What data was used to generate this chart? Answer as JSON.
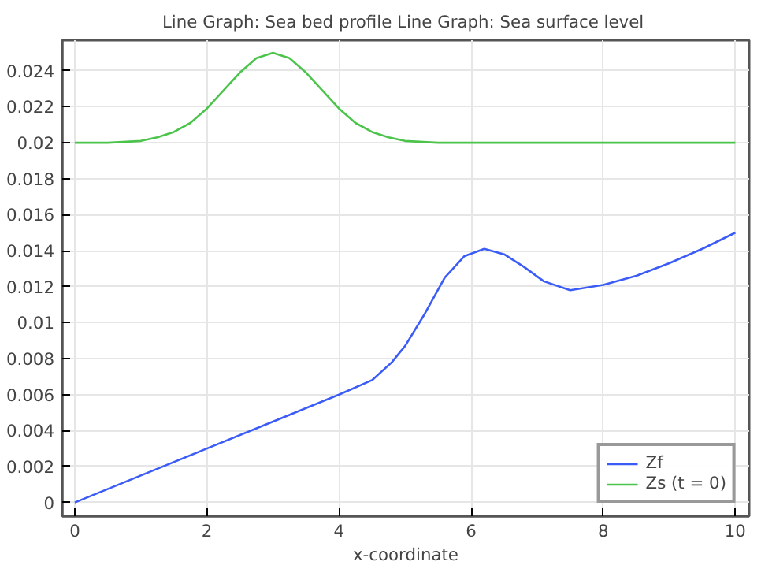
{
  "chart_data": {
    "type": "line",
    "title": "Line Graph: Sea bed profile  Line Graph: Sea surface level",
    "xlabel": "x-coordinate",
    "series": [
      {
        "name": "Zf",
        "color": "#3b5cf6",
        "x": [
          0,
          1,
          2,
          3,
          4,
          4.5,
          4.8,
          5,
          5.3,
          5.6,
          5.9,
          6.2,
          6.5,
          6.8,
          7.1,
          7.5,
          8,
          8.5,
          9,
          9.5,
          10
        ],
        "values": [
          0,
          0.0015,
          0.003,
          0.0045,
          0.006,
          0.0068,
          0.0078,
          0.0087,
          0.0105,
          0.0125,
          0.0137,
          0.0141,
          0.0138,
          0.0131,
          0.0123,
          0.0118,
          0.0121,
          0.0126,
          0.0133,
          0.0141,
          0.015
        ]
      },
      {
        "name": "Zs (t = 0)",
        "color": "#4cc44c",
        "x": [
          0,
          0.5,
          1,
          1.25,
          1.5,
          1.75,
          2,
          2.25,
          2.5,
          2.75,
          3,
          3.25,
          3.5,
          3.75,
          4,
          4.25,
          4.5,
          4.75,
          5,
          5.5,
          6,
          10
        ],
        "values": [
          0.02,
          0.02,
          0.0201,
          0.0203,
          0.0206,
          0.0211,
          0.0219,
          0.0229,
          0.0239,
          0.0247,
          0.025,
          0.0247,
          0.0239,
          0.0229,
          0.0219,
          0.0211,
          0.0206,
          0.0203,
          0.0201,
          0.02,
          0.02,
          0.02
        ]
      }
    ],
    "xlim": [
      -0.19,
      10.21
    ],
    "ylim": [
      -0.00076,
      0.0257
    ],
    "xticks": [
      0,
      2,
      4,
      6,
      8,
      10
    ],
    "yticks": [
      0,
      0.002,
      0.004,
      0.006,
      0.008,
      0.01,
      0.012,
      0.014,
      0.016,
      0.018,
      0.02,
      0.022,
      0.024
    ],
    "grid": true,
    "legend": "bottom right",
    "marker": "none",
    "line_style": "solid"
  }
}
